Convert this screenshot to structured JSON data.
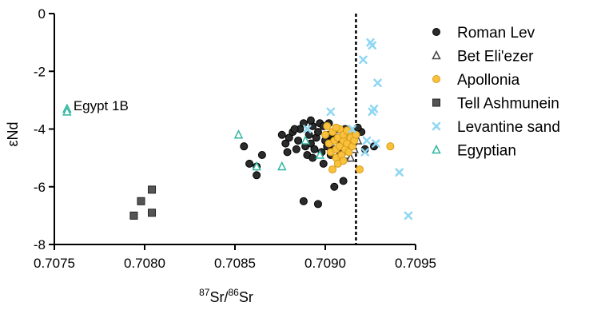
{
  "chart_data": {
    "type": "scatter",
    "title": "",
    "xlabel": {
      "sup1": "87",
      "base1": "Sr/",
      "sup2": "86",
      "base2": "Sr"
    },
    "ylabel": "εNd",
    "xlim": [
      0.7075,
      0.7095
    ],
    "ylim": [
      -8,
      0
    ],
    "x_ticks": [
      "0.7075",
      "0.7080",
      "0.7085",
      "0.7090",
      "0.7095"
    ],
    "y_ticks": [
      "0",
      "-2",
      "-4",
      "-6",
      "-8"
    ],
    "reference_line_x": 0.70917,
    "legend_position": "right",
    "annotations": [
      {
        "text": "Egypt 1B",
        "x": 0.70757,
        "y": -3.4
      }
    ],
    "series": [
      {
        "name": "Roman Lev",
        "marker": "circle",
        "fill": "#2b2b2b",
        "stroke": "#000000",
        "points": [
          [
            0.70855,
            -4.6
          ],
          [
            0.70858,
            -5.2
          ],
          [
            0.70862,
            -5.6
          ],
          [
            0.70862,
            -5.3
          ],
          [
            0.70865,
            -4.9
          ],
          [
            0.70876,
            -4.2
          ],
          [
            0.70878,
            -4.5
          ],
          [
            0.70879,
            -4.8
          ],
          [
            0.7088,
            -4.3
          ],
          [
            0.70882,
            -4.1
          ],
          [
            0.70884,
            -4.7
          ],
          [
            0.70885,
            -4.4
          ],
          [
            0.70886,
            -4.0
          ],
          [
            0.70888,
            -3.8
          ],
          [
            0.70889,
            -4.6
          ],
          [
            0.7089,
            -4.9
          ],
          [
            0.70891,
            -4.2
          ],
          [
            0.70892,
            -4.5
          ],
          [
            0.70893,
            -3.9
          ],
          [
            0.70894,
            -4.7
          ],
          [
            0.70895,
            -4.3
          ],
          [
            0.70896,
            -4.1
          ],
          [
            0.70897,
            -3.8
          ],
          [
            0.70898,
            -4.8
          ],
          [
            0.70899,
            -3.9
          ],
          [
            0.709,
            -4.4
          ],
          [
            0.70901,
            -4.6
          ],
          [
            0.70902,
            -4.2
          ],
          [
            0.70903,
            -4.9
          ],
          [
            0.70904,
            -4.4
          ],
          [
            0.70905,
            -4.7
          ],
          [
            0.70906,
            -4.3
          ],
          [
            0.70907,
            -4.0
          ],
          [
            0.70908,
            -4.8
          ],
          [
            0.70909,
            -4.5
          ],
          [
            0.7091,
            -4.2
          ],
          [
            0.70911,
            -4.0
          ],
          [
            0.70912,
            -4.6
          ],
          [
            0.70913,
            -5.0
          ],
          [
            0.70915,
            -4.3
          ],
          [
            0.70917,
            -4.2
          ],
          [
            0.7092,
            -4.1
          ],
          [
            0.70922,
            -4.7
          ],
          [
            0.70888,
            -6.5
          ],
          [
            0.70896,
            -6.6
          ],
          [
            0.70905,
            -6.0
          ],
          [
            0.7091,
            -5.8
          ],
          [
            0.70893,
            -5.0
          ],
          [
            0.70899,
            -5.2
          ],
          [
            0.70927,
            -4.6
          ],
          [
            0.70883,
            -4.0
          ],
          [
            0.70892,
            -3.7
          ],
          [
            0.70902,
            -3.8
          ],
          [
            0.70918,
            -3.95
          ]
        ]
      },
      {
        "name": "Bet Eli'ezer",
        "marker": "triangle",
        "fill": "#ffffff",
        "stroke": "#444444",
        "points": [
          [
            0.70905,
            -4.8
          ],
          [
            0.70908,
            -5.0
          ],
          [
            0.70912,
            -4.9
          ],
          [
            0.70914,
            -5.0
          ],
          [
            0.7091,
            -4.6
          ],
          [
            0.70916,
            -4.7
          ],
          [
            0.70918,
            -4.4
          ]
        ]
      },
      {
        "name": "Apollonia",
        "marker": "circle",
        "fill": "#f9c23c",
        "stroke": "#d99a1a",
        "points": [
          [
            0.709,
            -4.2
          ],
          [
            0.70902,
            -4.5
          ],
          [
            0.70903,
            -4.8
          ],
          [
            0.70904,
            -4.1
          ],
          [
            0.70905,
            -4.4
          ],
          [
            0.70906,
            -4.7
          ],
          [
            0.70906,
            -5.0
          ],
          [
            0.70907,
            -4.3
          ],
          [
            0.70908,
            -4.6
          ],
          [
            0.70908,
            -4.0
          ],
          [
            0.70909,
            -4.9
          ],
          [
            0.7091,
            -4.4
          ],
          [
            0.7091,
            -4.2
          ],
          [
            0.70911,
            -4.7
          ],
          [
            0.70912,
            -4.5
          ],
          [
            0.70913,
            -4.1
          ],
          [
            0.70913,
            -4.8
          ],
          [
            0.70914,
            -4.3
          ],
          [
            0.70915,
            -4.6
          ],
          [
            0.70916,
            -4.4
          ],
          [
            0.70917,
            -4.2
          ],
          [
            0.70904,
            -5.4
          ],
          [
            0.70907,
            -5.2
          ],
          [
            0.7091,
            -5.1
          ],
          [
            0.70919,
            -5.4
          ],
          [
            0.70936,
            -4.6
          ],
          [
            0.70901,
            -3.9
          ],
          [
            0.70906,
            -3.95
          ],
          [
            0.70912,
            -4.05
          ]
        ]
      },
      {
        "name": "Tell Ashmunein",
        "marker": "square",
        "fill": "#555555",
        "stroke": "#222222",
        "points": [
          [
            0.70794,
            -7.0
          ],
          [
            0.70798,
            -6.5
          ],
          [
            0.70804,
            -6.1
          ],
          [
            0.70804,
            -6.9
          ]
        ]
      },
      {
        "name": "Levantine sand",
        "marker": "x",
        "fill": "none",
        "stroke": "#8fd7f3",
        "points": [
          [
            0.70925,
            -1.0
          ],
          [
            0.70926,
            -1.1
          ],
          [
            0.70921,
            -1.6
          ],
          [
            0.70929,
            -2.4
          ],
          [
            0.70927,
            -3.3
          ],
          [
            0.70926,
            -3.4
          ],
          [
            0.70903,
            -3.4
          ],
          [
            0.70928,
            -4.5
          ],
          [
            0.70922,
            -4.8
          ],
          [
            0.70941,
            -5.5
          ],
          [
            0.70946,
            -7.0
          ],
          [
            0.7089,
            -4.0
          ],
          [
            0.70915,
            -4.0
          ],
          [
            0.70923,
            -4.4
          ]
        ]
      },
      {
        "name": "Egyptian",
        "marker": "triangle",
        "fill": "#ffffff",
        "stroke": "#2fb59f",
        "points": [
          [
            0.70757,
            -3.3
          ],
          [
            0.70757,
            -3.4
          ],
          [
            0.70852,
            -4.2
          ],
          [
            0.70862,
            -5.3
          ],
          [
            0.70876,
            -5.3
          ],
          [
            0.70889,
            -4.4
          ],
          [
            0.70897,
            -4.9
          ]
        ]
      }
    ]
  }
}
